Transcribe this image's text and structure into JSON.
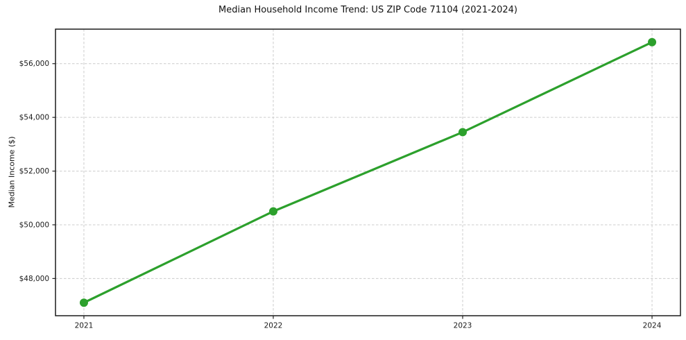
{
  "chart": {
    "title": "Median Household Income Trend: US ZIP Code 71104 (2021-2024)",
    "ylabel": "Median Income ($)"
  },
  "chart_data": {
    "type": "line",
    "title": "Median Household Income Trend: US ZIP Code 71104 (2021-2024)",
    "xlabel": "",
    "ylabel": "Median Income ($)",
    "categories": [
      "2021",
      "2022",
      "2023",
      "2024"
    ],
    "x": [
      2021,
      2022,
      2023,
      2024
    ],
    "series": [
      {
        "name": "Median Household Income",
        "values": [
          47100,
          50500,
          53450,
          56800
        ]
      }
    ],
    "yticks": [
      {
        "value": 48000,
        "label": "$48,000"
      },
      {
        "value": 50000,
        "label": "$50,000"
      },
      {
        "value": 52000,
        "label": "$52,000"
      },
      {
        "value": 54000,
        "label": "$54,000"
      },
      {
        "value": 56000,
        "label": "$56,000"
      }
    ],
    "xlim": [
      2020.85,
      2024.15
    ],
    "ylim": [
      46615,
      57285
    ],
    "grid": true,
    "grid_style": "dashed",
    "legend_position": "none",
    "line_color": "#2ca02c",
    "grid_color": "#cccccc",
    "background_color": "#ffffff",
    "marker": "circle"
  }
}
